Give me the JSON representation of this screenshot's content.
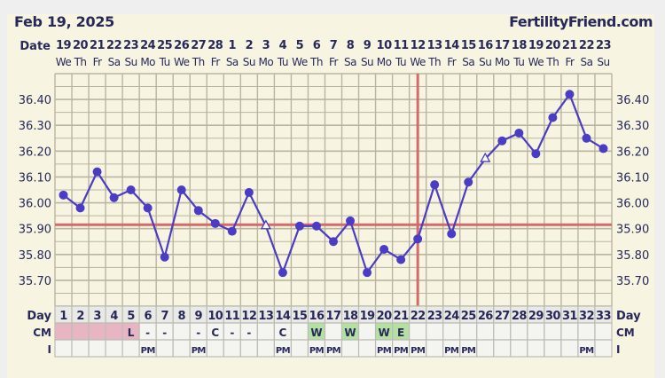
{
  "header": {
    "title": "Feb 19, 2025",
    "brand": "FertilityFriend.com"
  },
  "row_labels": {
    "date": "Date",
    "day": "Day",
    "cm": "CM",
    "intercourse": "I"
  },
  "colors": {
    "line": "#4a3cc4",
    "coverline": "#d46a6a",
    "ovulation_line": "#d46a6a",
    "menstruation": "#e8b6c2",
    "fertile_cm": "#b4e0a2",
    "text": "#27285a"
  },
  "chart_data": {
    "type": "line",
    "title": "",
    "xlabel": "Day",
    "ylabel": "",
    "ylim": [
      35.6,
      36.5
    ],
    "yticks": [
      "36.40",
      "36.30",
      "36.20",
      "36.10",
      "36.00",
      "35.90",
      "35.80",
      "35.70"
    ],
    "grid": true,
    "dates": [
      "19",
      "20",
      "21",
      "22",
      "23",
      "24",
      "25",
      "26",
      "27",
      "28",
      "1",
      "2",
      "3",
      "4",
      "5",
      "6",
      "7",
      "8",
      "9",
      "10",
      "11",
      "12",
      "13",
      "14",
      "15",
      "16",
      "17",
      "18",
      "19",
      "20",
      "21",
      "22",
      "23"
    ],
    "weekdays": [
      "We",
      "Th",
      "Fr",
      "Sa",
      "Su",
      "Mo",
      "Tu",
      "We",
      "Th",
      "Fr",
      "Sa",
      "Su",
      "Mo",
      "Tu",
      "We",
      "Th",
      "Fr",
      "Sa",
      "Su",
      "Mo",
      "Tu",
      "We",
      "Th",
      "Fr",
      "Sa",
      "Su",
      "Mo",
      "Tu",
      "We",
      "Th",
      "Fr",
      "Sa",
      "Su"
    ],
    "days": [
      "1",
      "2",
      "3",
      "4",
      "5",
      "6",
      "7",
      "8",
      "9",
      "10",
      "11",
      "12",
      "13",
      "14",
      "15",
      "16",
      "17",
      "18",
      "19",
      "20",
      "21",
      "22",
      "23",
      "24",
      "25",
      "26",
      "27",
      "28",
      "29",
      "30",
      "31",
      "32",
      "33"
    ],
    "temperatures": [
      36.03,
      35.98,
      36.12,
      36.02,
      36.05,
      35.98,
      35.79,
      36.05,
      35.97,
      35.92,
      35.89,
      36.04,
      35.91,
      35.73,
      35.91,
      35.91,
      35.85,
      35.93,
      35.73,
      35.82,
      35.78,
      35.86,
      36.07,
      35.88,
      36.08,
      36.17,
      36.24,
      36.27,
      36.19,
      36.33,
      36.42,
      36.25,
      36.21
    ],
    "open_markers_days": [
      13,
      26
    ],
    "coverline": 35.915,
    "ovulation_day": 22,
    "cm": [
      "",
      "",
      "",
      "",
      "L",
      "-",
      "-",
      "",
      "-",
      "C",
      "-",
      "-",
      "",
      "C",
      "",
      "W",
      "",
      "W",
      "",
      "W",
      "E",
      "",
      "",
      "",
      "",
      "",
      "",
      "",
      "",
      "",
      "",
      "",
      ""
    ],
    "menstruation_days": [
      1,
      2,
      3,
      4,
      5
    ],
    "fertile_cm_days": [
      16,
      18,
      20,
      21
    ],
    "intercourse": [
      "",
      "",
      "",
      "",
      "",
      "PM",
      "",
      "",
      "PM",
      "",
      "",
      "",
      "",
      "PM",
      "",
      "PM",
      "PM",
      "",
      "",
      "PM",
      "PM",
      "PM",
      "",
      "PM",
      "PM",
      "",
      "",
      "",
      "",
      "",
      "",
      "PM",
      ""
    ]
  }
}
